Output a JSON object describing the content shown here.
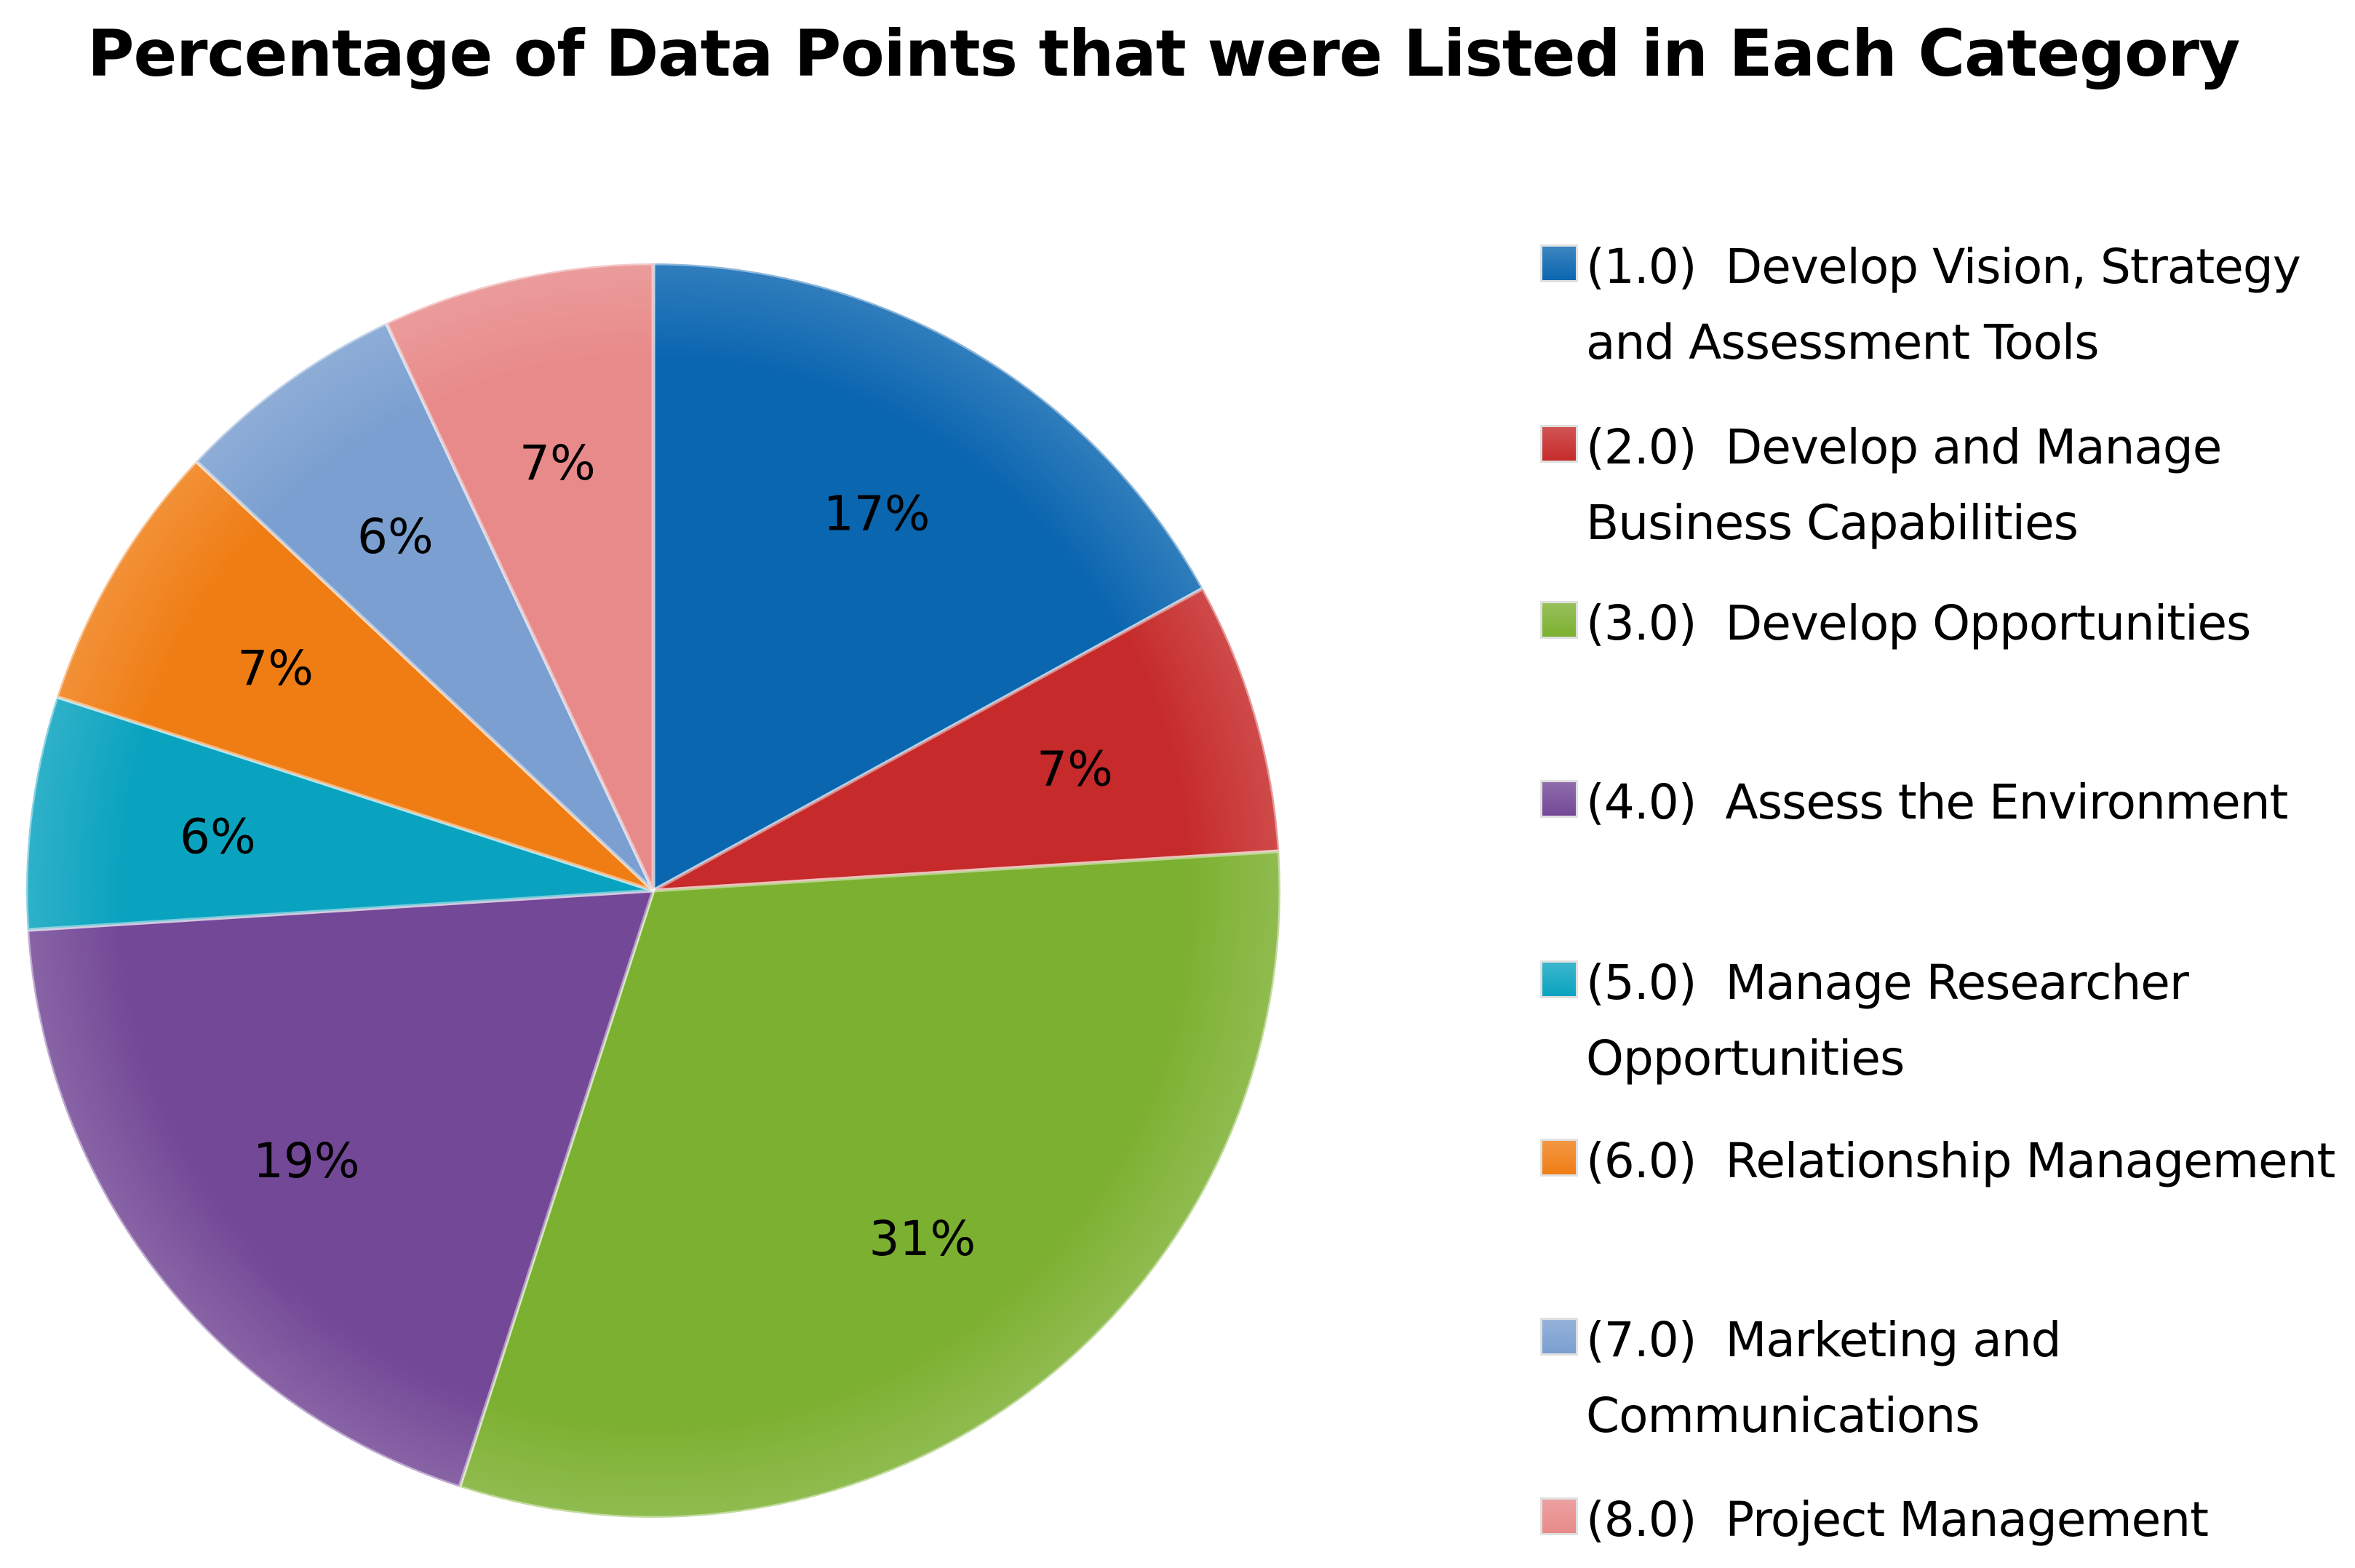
{
  "chart_data": {
    "type": "pie",
    "title": "Percentage of Data Points that were Listed in Each Category",
    "legend_position": "right",
    "start_angle": "12 o'clock, clockwise",
    "categories": [
      "(1.0)  Develop Vision, Strategy and Assessment Tools",
      "(2.0)  Develop and Manage Business Capabilities",
      "(3.0)  Develop Opportunities",
      "(4.0)  Assess the Environment",
      "(5.0)  Manage Researcher Opportunities",
      "(6.0)  Relationship Management",
      "(7.0)  Marketing and Communications",
      "(8.0)  Project Management"
    ],
    "values": [
      17,
      7,
      31,
      19,
      6,
      7,
      6,
      7
    ],
    "data_labels": [
      "17%",
      "7%",
      "31%",
      "19%",
      "6%",
      "7%",
      "6%",
      "7%"
    ],
    "colors": [
      "#0b66b0",
      "#c62a2a",
      "#7cb030",
      "#734896",
      "#0aa3bf",
      "#f07d14",
      "#7a9fd0",
      "#e88a8a"
    ]
  }
}
